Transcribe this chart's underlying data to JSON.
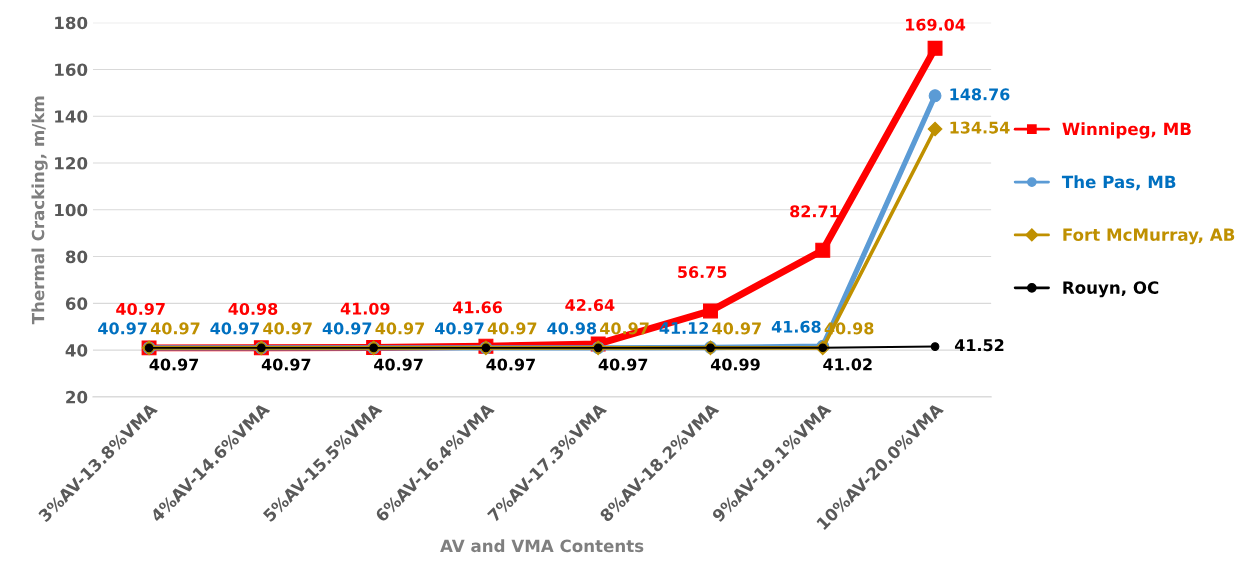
{
  "chart_data": {
    "type": "line",
    "xlabel": "AV and VMA Contents",
    "ylabel": "Thermal Cracking, m/km",
    "categories": [
      "3%AV-13.8%VMA",
      "4%AV-14.6%VMA",
      "5%AV-15.5%VMA",
      "6%AV-16.4%VMA",
      "7%AV-17.3%VMA",
      "8%AV-18.2%VMA",
      "9%AV-19.1%VMA",
      "10%AV-20.0%VMA"
    ],
    "series": [
      {
        "name": "Winnipeg, MB",
        "color": "#ff0000",
        "marker": "square",
        "values": [
          40.97,
          40.98,
          41.09,
          41.66,
          42.64,
          56.75,
          82.71,
          169.04
        ]
      },
      {
        "name": "The Pas, MB",
        "color": "#5b9bd5",
        "marker": "circle",
        "values": [
          40.97,
          40.97,
          40.97,
          40.97,
          40.98,
          41.12,
          41.68,
          148.76
        ]
      },
      {
        "name": "Fort McMurray, AB",
        "color": "#bf9000",
        "marker": "diamond",
        "values": [
          40.97,
          40.97,
          40.97,
          40.97,
          40.97,
          40.97,
          40.98,
          134.54
        ]
      },
      {
        "name": "Rouyn, OC",
        "color": "#000000",
        "marker": "circle",
        "values": [
          40.97,
          40.97,
          40.97,
          40.97,
          40.97,
          40.99,
          41.02,
          41.52
        ]
      }
    ],
    "ylim": [
      20,
      180
    ],
    "yticks": [
      20,
      40,
      60,
      80,
      100,
      120,
      140,
      160,
      180
    ],
    "grid": "y",
    "legend": "right",
    "data_labels": true,
    "line_style": "solid"
  }
}
